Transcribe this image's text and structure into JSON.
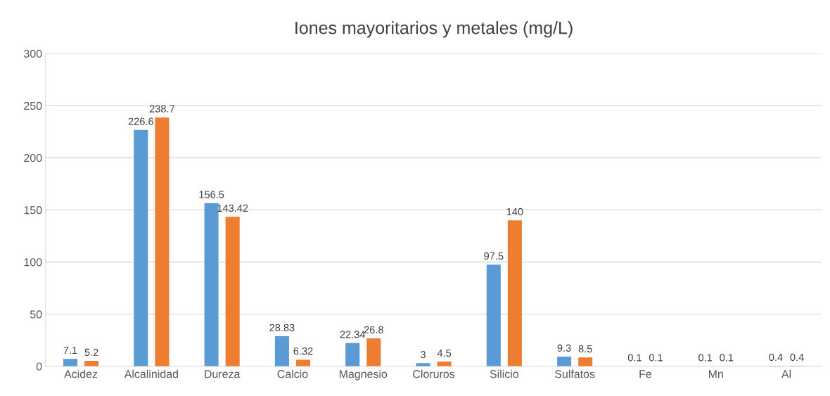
{
  "chart_data": {
    "type": "bar",
    "title": "Iones mayoritarios y metales (mg/L)",
    "categories": [
      "Acidez",
      "Alcalinidad",
      "Dureza",
      "Calcio",
      "Magnesio",
      "Cloruros",
      "Silicio",
      "Sulfatos",
      "Fe",
      "Mn",
      "Al"
    ],
    "series": [
      {
        "color": "#5b9bd5",
        "values": [
          7.1,
          226.6,
          156.5,
          28.83,
          22.34,
          3,
          97.5,
          9.3,
          0.1,
          0.1,
          0.4
        ]
      },
      {
        "color": "#ed7d31",
        "values": [
          5.2,
          238.7,
          143.42,
          6.32,
          26.8,
          4.5,
          140,
          8.5,
          0.1,
          0.1,
          0.4
        ]
      }
    ],
    "ylim": [
      0,
      300
    ],
    "yticks": [
      0,
      50,
      100,
      150,
      200,
      250,
      300
    ],
    "grid": "y",
    "data_labels": true
  }
}
